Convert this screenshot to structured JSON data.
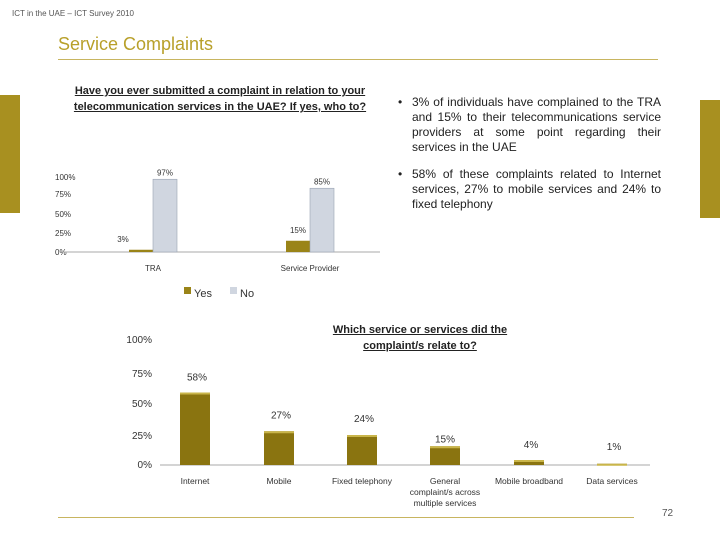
{
  "header": {
    "text": "ICT in the UAE – ICT Survey 2010"
  },
  "title": "Service Complaints",
  "page_number": "72",
  "colors": {
    "accent": "#b8a02a",
    "yes_bar": "#9a8418",
    "no_bar": "#d0d6e0",
    "service_bar": "#8a7410"
  },
  "chart1": {
    "question": "Have you ever submitted a complaint in relation to your telecommunication services in the UAE?  If yes, who to?"
  },
  "chart2": {
    "question": "Which service or services did the complaint/s relate to?"
  },
  "bullets": [
    "3% of individuals have complained to the TRA and 15% to their telecommunications service providers at some point regarding their services in the UAE",
    "58% of these complaints related to Internet services, 27% to mobile services and 24% to fixed telephony"
  ],
  "chart_data": [
    {
      "type": "bar",
      "title": "Have you ever submitted a complaint in relation to your telecommunication services in the UAE?  If yes, who to?",
      "categories": [
        "TRA",
        "Service Provider"
      ],
      "series": [
        {
          "name": "Yes",
          "values": [
            3,
            15
          ],
          "labels": [
            "3%",
            "15%"
          ]
        },
        {
          "name": "No",
          "values": [
            97,
            85
          ],
          "labels": [
            "97%",
            "85%"
          ]
        }
      ],
      "yticks": [
        "0%",
        "25%",
        "50%",
        "75%",
        "100%"
      ],
      "ylim": [
        0,
        100
      ],
      "legend": "bottom"
    },
    {
      "type": "bar",
      "title": "Which service or services did the complaint/s relate to?",
      "categories": [
        "Internet",
        "Mobile",
        "Fixed telephony",
        "General complaint/s across multiple services",
        "Mobile broadband",
        "Data services"
      ],
      "values": [
        58,
        27,
        24,
        15,
        4,
        1
      ],
      "labels": [
        "58%",
        "27%",
        "24%",
        "15%",
        "4%",
        "1%"
      ],
      "yticks": [
        "0%",
        "25%",
        "50%",
        "75%",
        "100%"
      ],
      "ylim": [
        0,
        100
      ]
    }
  ]
}
